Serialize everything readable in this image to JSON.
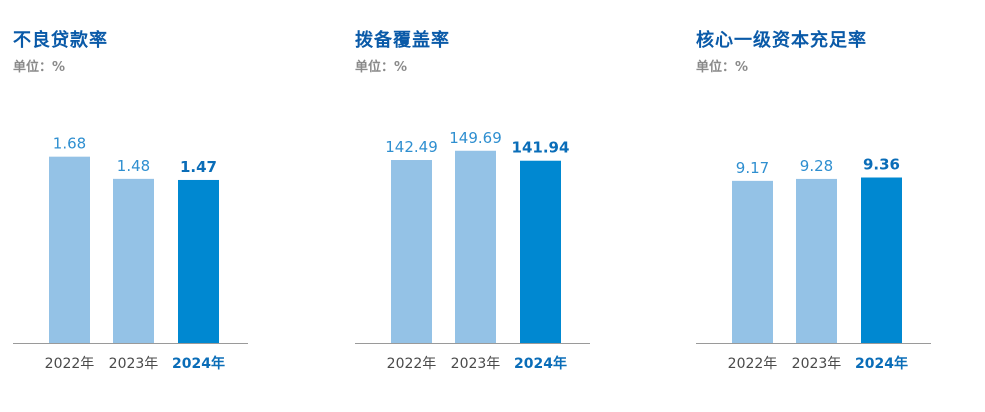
{
  "theme": {
    "title_color": "#0a5aa8",
    "unit_color": "#8a8a8a",
    "bar_light": "#94c2e6",
    "bar_highlight": "#0088d1",
    "label_light": "#2f8fd0",
    "label_highlight": "#0a6db8",
    "axis_color": "#9a9a9a",
    "tick_color": "#4a4a4a"
  },
  "chart_data": [
    {
      "type": "bar",
      "title": "不良贷款率",
      "unit_label": "单位：%",
      "categories": [
        "2022年",
        "2023年",
        "2024年"
      ],
      "values": [
        1.68,
        1.48,
        1.47
      ],
      "value_labels": [
        "1.68",
        "1.48",
        "1.47"
      ],
      "highlight_index": 2,
      "ylim": [
        0,
        2.2
      ]
    },
    {
      "type": "bar",
      "title": "拨备覆盖率",
      "unit_label": "单位：%",
      "categories": [
        "2022年",
        "2023年",
        "2024年"
      ],
      "values": [
        142.49,
        149.69,
        141.94
      ],
      "value_labels": [
        "142.49",
        "149.69",
        "141.94"
      ],
      "highlight_index": 2,
      "ylim": [
        0,
        190
      ]
    },
    {
      "type": "bar",
      "title": "核心一级资本充足率",
      "unit_label": "单位：%",
      "categories": [
        "2022年",
        "2023年",
        "2024年"
      ],
      "values": [
        9.17,
        9.28,
        9.36
      ],
      "value_labels": [
        "9.17",
        "9.28",
        "9.36"
      ],
      "highlight_index": 2,
      "ylim": [
        0,
        13.8
      ]
    }
  ]
}
